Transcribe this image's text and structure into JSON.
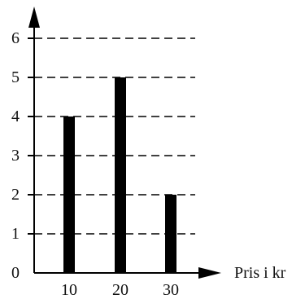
{
  "chart_data": {
    "type": "bar",
    "title": "",
    "xlabel": "Pris i kr",
    "ylabel": "",
    "categories": [
      "10",
      "20",
      "30"
    ],
    "values": [
      4,
      5,
      2
    ],
    "x_ticks": [
      "10",
      "20",
      "30"
    ],
    "y_ticks": [
      "0",
      "1",
      "2",
      "3",
      "4",
      "5",
      "6"
    ],
    "ylim": [
      0,
      6
    ],
    "grid": "dashed horizontal at each y tick",
    "legend": "none",
    "colors": {
      "bar": "#000000",
      "axis": "#000000",
      "grid": "#000000"
    }
  }
}
